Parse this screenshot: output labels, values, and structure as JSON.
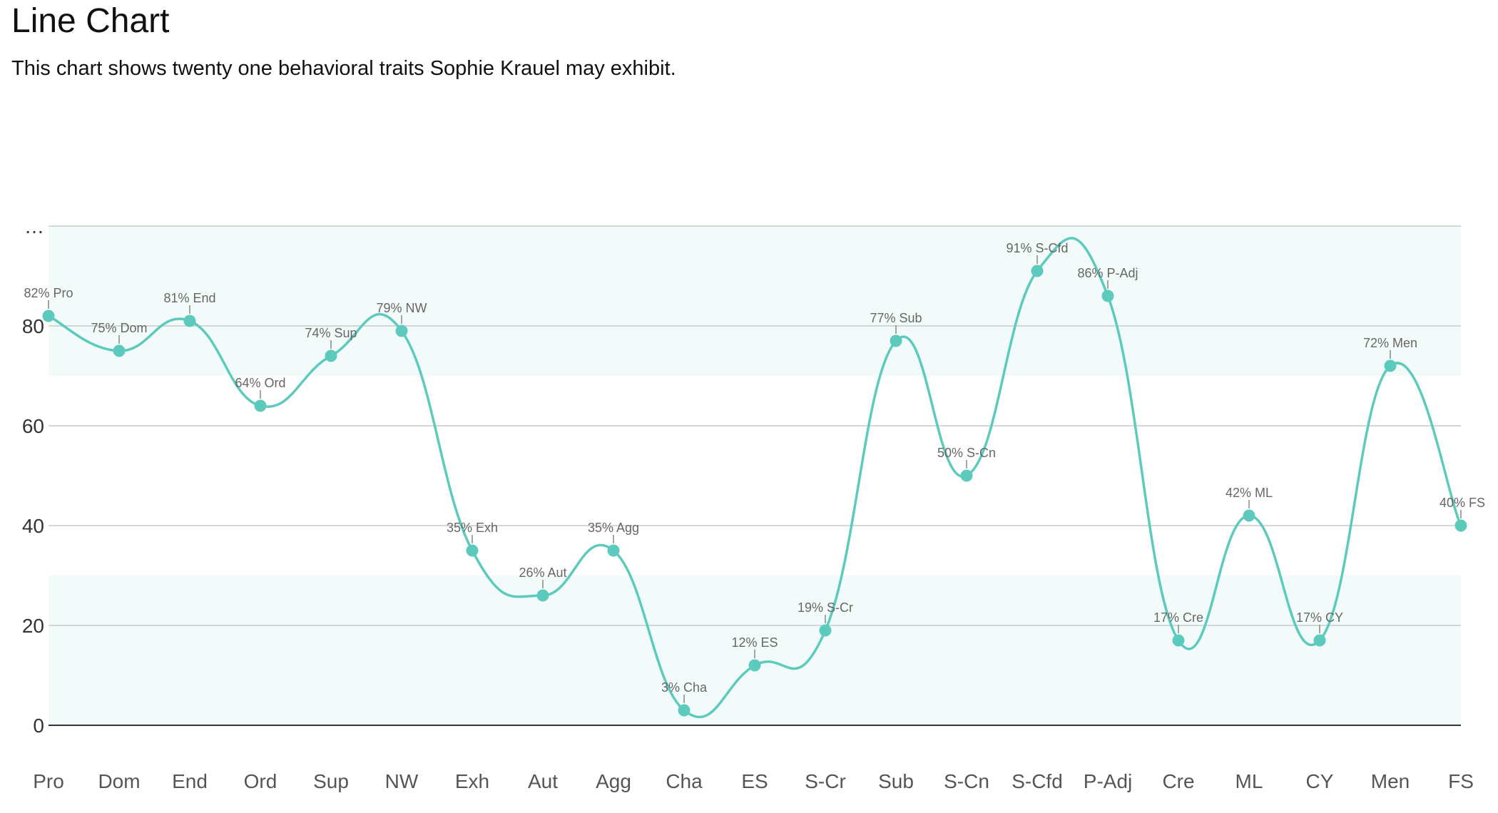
{
  "page": {
    "title": "Line Chart",
    "description": "This chart shows twenty one behavioral traits Sophie Krauel may exhibit."
  },
  "chart_data": {
    "type": "line",
    "categories": [
      "Pro",
      "Dom",
      "End",
      "Ord",
      "Sup",
      "NW",
      "Exh",
      "Aut",
      "Agg",
      "Cha",
      "ES",
      "S-Cr",
      "Sub",
      "S-Cn",
      "S-Cfd",
      "P-Adj",
      "Cre",
      "ML",
      "CY",
      "Men",
      "FS"
    ],
    "series": [
      {
        "values": [
          82,
          75,
          81,
          64,
          74,
          79,
          35,
          26,
          35,
          3,
          12,
          19,
          77,
          50,
          91,
          86,
          17,
          42,
          17,
          72,
          40
        ]
      }
    ],
    "data_labels": [
      "82% Pro",
      "75% Dom",
      "81% End",
      "64% Ord",
      "74% Sup",
      "79% NW",
      "35% Exh",
      "26% Aut",
      "35% Agg",
      "3% Cha",
      "12% ES",
      "19% S-Cr",
      "77% Sub",
      "50% S-Cn",
      "91% S-Cfd",
      "86% P-Adj",
      "17% Cre",
      "42% ML",
      "17% CY",
      "72% Men",
      "40% FS"
    ],
    "y_ticks": [
      "0",
      "20",
      "40",
      "60",
      "80",
      "…"
    ],
    "ylim": [
      0,
      100
    ],
    "bands": [
      {
        "from": 0,
        "to": 30,
        "color": "#f3fafa"
      },
      {
        "from": 70,
        "to": 100,
        "color": "#f3fafa"
      }
    ],
    "grid": true,
    "line_color": "#5ccbbd",
    "xlabel": "",
    "ylabel": ""
  }
}
